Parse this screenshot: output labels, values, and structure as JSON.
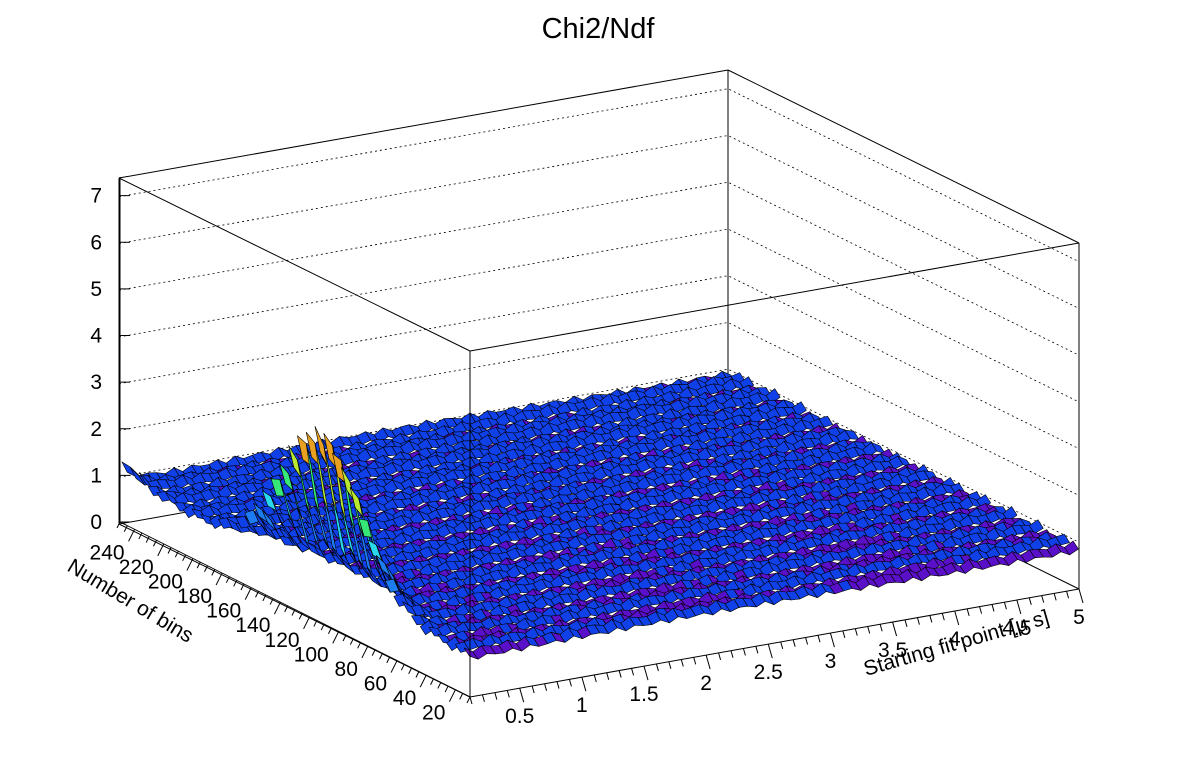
{
  "chart_data": {
    "type": "surface3d",
    "title": "Chi2/Ndf",
    "xlabel": "Starting fit point [μ s]",
    "ylabel": "Number of bins",
    "zlabel": "",
    "xlim": [
      0.1,
      5.0
    ],
    "ylim": [
      10,
      250
    ],
    "zlim": [
      0,
      7.4
    ],
    "x_ticks": [
      "0.5",
      "1",
      "1.5",
      "2",
      "2.5",
      "3",
      "3.5",
      "4",
      "4.5",
      "5"
    ],
    "y_ticks": [
      "20",
      "40",
      "60",
      "80",
      "100",
      "120",
      "140",
      "160",
      "180",
      "200",
      "220",
      "240"
    ],
    "z_ticks": [
      "0",
      "1",
      "2",
      "3",
      "4",
      "5",
      "6",
      "7"
    ],
    "grid": true,
    "legend": "none",
    "colormap": [
      "#5a10c8",
      "#1040e8",
      "#1e7cf2",
      "#2ad8ee",
      "#36e878",
      "#b8e830",
      "#e8a020",
      "#d02020"
    ],
    "description_of_surface": "Flat surface around Chi2/Ndf ~1 over the whole grid; a ridge of large values (up to ~4.2) near the smallest starting fit points (~0.1-0.3 μs) for bin counts of about 40-140; slight rise (~1.5) at 240 bins near x=0.1.",
    "series": [
      {
        "x": [
          0.1,
          0.2,
          0.3,
          0.5,
          1.0,
          2.0,
          3.0,
          4.0,
          5.0
        ],
        "y_bins": 240,
        "values": [
          1.5,
          1.2,
          1.0,
          1.0,
          1.0,
          1.0,
          1.0,
          1.0,
          1.0
        ]
      },
      {
        "x": [
          0.1,
          0.2,
          0.3,
          0.5,
          1.0,
          2.0,
          3.0,
          4.0,
          5.0
        ],
        "y_bins": 140,
        "values": [
          4.2,
          3.6,
          1.5,
          1.0,
          1.0,
          1.0,
          1.0,
          1.0,
          1.0
        ]
      },
      {
        "x": [
          0.1,
          0.2,
          0.3,
          0.5,
          1.0,
          2.0,
          3.0,
          4.0,
          5.0
        ],
        "y_bins": 100,
        "values": [
          3.0,
          2.4,
          1.3,
          1.0,
          1.0,
          1.0,
          1.0,
          1.0,
          1.0
        ]
      },
      {
        "x": [
          0.1,
          0.2,
          0.3,
          0.5,
          1.0,
          2.0,
          3.0,
          4.0,
          5.0
        ],
        "y_bins": 60,
        "values": [
          1.8,
          1.5,
          1.1,
          1.0,
          1.0,
          1.0,
          1.0,
          1.0,
          1.0
        ]
      },
      {
        "x": [
          0.1,
          0.2,
          0.3,
          0.5,
          1.0,
          2.0,
          3.0,
          4.0,
          5.0
        ],
        "y_bins": 20,
        "values": [
          1.0,
          1.0,
          1.0,
          1.0,
          1.0,
          1.0,
          1.0,
          1.0,
          1.0
        ]
      }
    ]
  }
}
